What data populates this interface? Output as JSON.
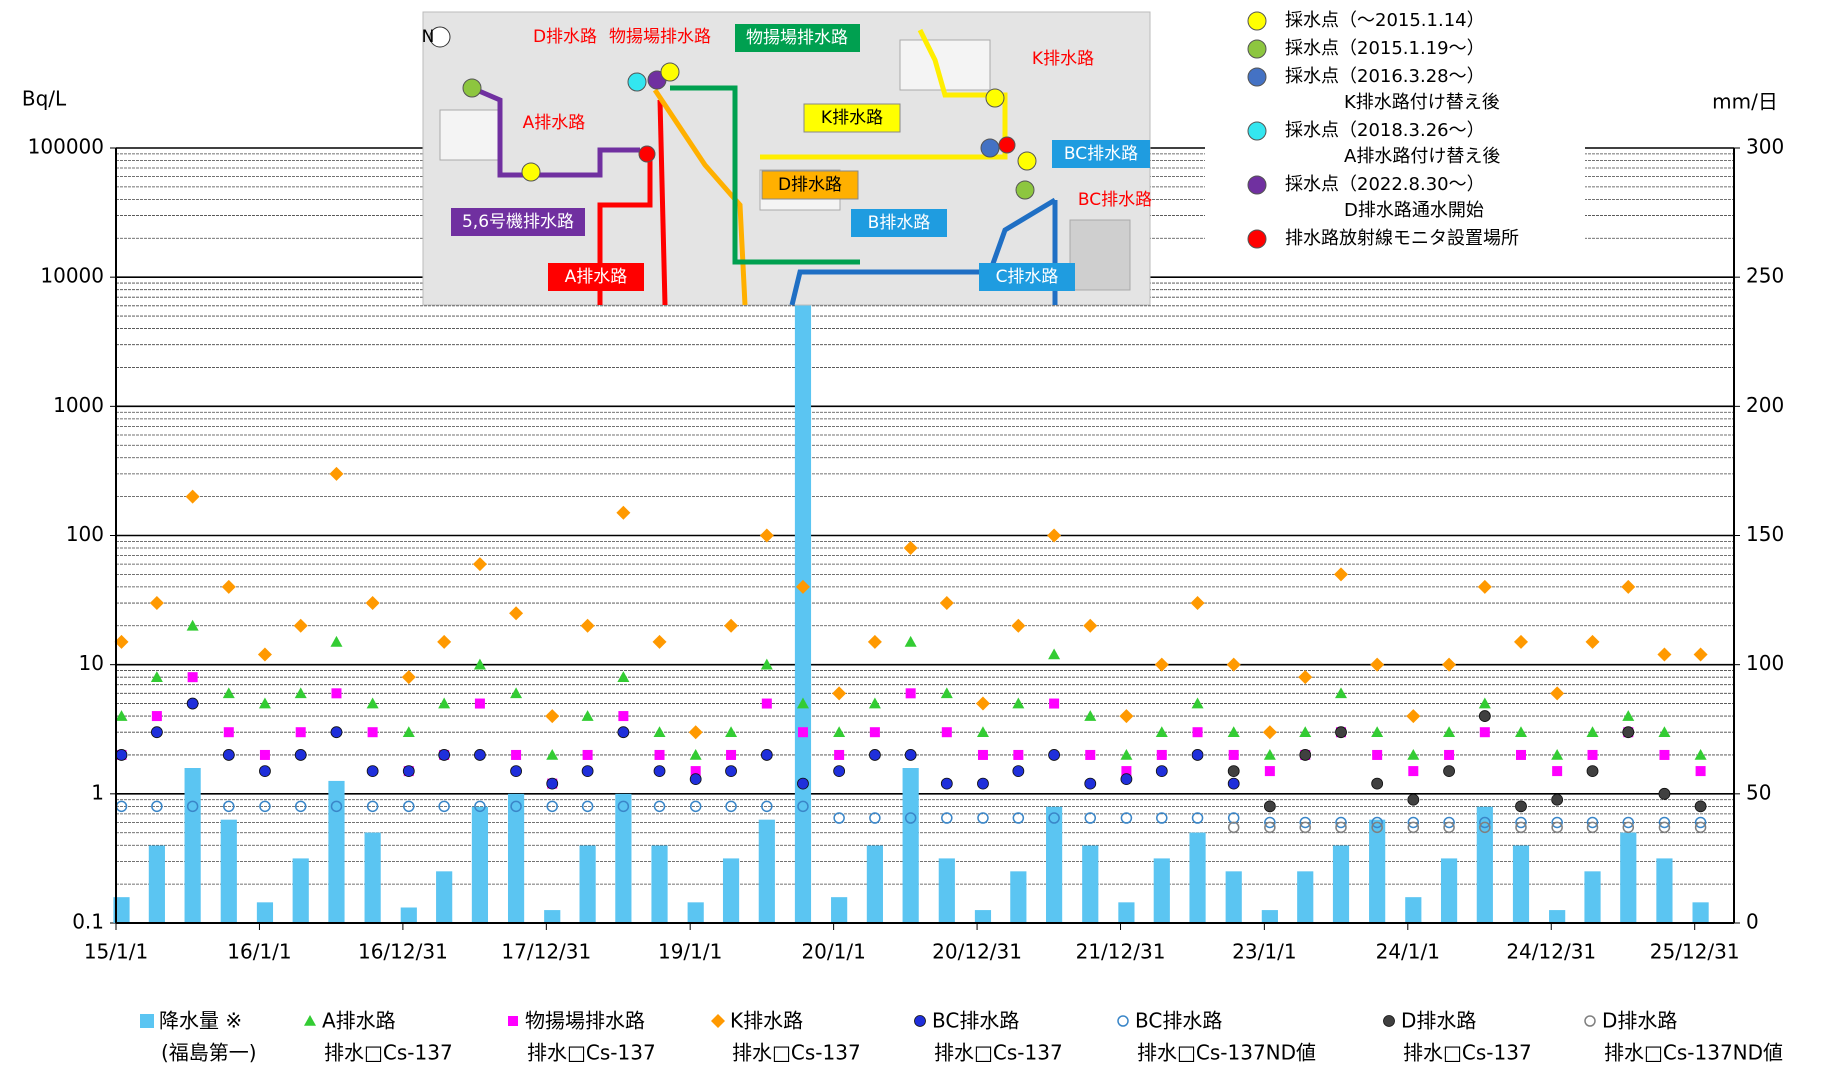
{
  "chart_data": {
    "type": "scatter",
    "y_label": "Bq/L",
    "y2_label": "mm/日",
    "log_y": true,
    "grid": true,
    "ylim": [
      0.1,
      100000
    ],
    "yticks": [
      0.1,
      1,
      10,
      100,
      1000,
      10000,
      100000
    ],
    "y2lim": [
      0,
      300
    ],
    "y2ticks": [
      0,
      50,
      100,
      150,
      200,
      250,
      300
    ],
    "xlim": [
      "15/1/1",
      "26/4/10"
    ],
    "xticks": [
      "15/1/1",
      "16/1/1",
      "16/12/31",
      "17/12/31",
      "19/1/1",
      "20/1/1",
      "20/12/31",
      "21/12/31",
      "23/1/1",
      "24/1/1",
      "24/12/31",
      "25/12/31"
    ],
    "x": [
      "15/1/15",
      "15/4/15",
      "15/7/15",
      "15/10/15",
      "16/1/15",
      "16/4/15",
      "16/7/15",
      "16/10/15",
      "17/1/15",
      "17/4/15",
      "17/7/15",
      "17/10/15",
      "18/1/15",
      "18/4/15",
      "18/7/15",
      "18/10/15",
      "19/1/15",
      "19/4/15",
      "19/7/15",
      "19/10/15",
      "20/1/15",
      "20/4/15",
      "20/7/15",
      "20/10/15",
      "21/1/15",
      "21/4/15",
      "21/7/15",
      "21/10/15",
      "22/1/15",
      "22/4/15",
      "22/7/15",
      "22/10/15",
      "23/1/15",
      "23/4/15",
      "23/7/15",
      "23/10/15",
      "24/1/15",
      "24/4/15",
      "24/7/15",
      "24/10/15",
      "25/1/15",
      "25/4/15",
      "25/7/15",
      "25/10/15",
      "26/1/15"
    ],
    "series": [
      {
        "name": "降水量 ※",
        "name2": "(福島第一)",
        "color": "#5bc5f2",
        "marker": "bar",
        "axis": "y2",
        "values": [
          10,
          30,
          60,
          40,
          8,
          25,
          55,
          35,
          6,
          20,
          45,
          50,
          5,
          30,
          50,
          30,
          8,
          25,
          40,
          290,
          10,
          30,
          60,
          25,
          5,
          20,
          45,
          30,
          8,
          25,
          35,
          20,
          5,
          20,
          30,
          40,
          10,
          25,
          45,
          30,
          5,
          20,
          35,
          25,
          8
        ]
      },
      {
        "name": "A排水路",
        "name2": "排水□Cs-137",
        "color": "#33cc33",
        "marker": "triangle",
        "values": [
          4,
          8,
          20,
          6,
          5,
          6,
          15,
          5,
          3,
          5,
          10,
          6,
          2,
          4,
          8,
          3,
          2,
          3,
          10,
          5,
          3,
          5,
          15,
          6,
          3,
          5,
          12,
          4,
          2,
          3,
          5,
          3,
          2,
          3,
          6,
          3,
          2,
          3,
          5,
          3,
          2,
          3,
          4,
          3,
          2
        ]
      },
      {
        "name": "物揚場排水路",
        "name2": "排水□Cs-137",
        "color": "#ff00ff",
        "marker": "square",
        "values": [
          2,
          4,
          8,
          3,
          2,
          3,
          6,
          3,
          1.5,
          2,
          5,
          2,
          1.2,
          2,
          4,
          2,
          1.5,
          2,
          5,
          3,
          2,
          3,
          6,
          3,
          2,
          2,
          5,
          2,
          1.5,
          2,
          3,
          2,
          1.5,
          2,
          3,
          2,
          1.5,
          2,
          3,
          2,
          1.5,
          2,
          3,
          2,
          1.5
        ]
      },
      {
        "name": "K排水路",
        "name2": "排水□Cs-137",
        "color": "#ff9900",
        "marker": "diamond",
        "values": [
          15,
          30,
          200,
          40,
          12,
          20,
          300,
          30,
          8,
          15,
          60,
          25,
          4,
          20,
          150,
          15,
          3,
          20,
          100,
          40,
          6,
          15,
          80,
          30,
          5,
          20,
          100,
          20,
          4,
          10,
          30,
          10,
          3,
          8,
          50,
          10,
          4,
          10,
          40,
          15,
          6,
          15,
          40,
          12,
          12
        ]
      },
      {
        "name": "BC排水路",
        "name2": "排水□Cs-137",
        "color": "#1f2fdb",
        "marker": "circle",
        "values": [
          2,
          3,
          5,
          2,
          1.5,
          2,
          3,
          1.5,
          1.5,
          2,
          2,
          1.5,
          1.2,
          1.5,
          3,
          1.5,
          1.3,
          1.5,
          2,
          1.2,
          1.5,
          2,
          2,
          1.2,
          1.2,
          1.5,
          2,
          1.2,
          1.3,
          1.5,
          2,
          1.2,
          null,
          null,
          null,
          null,
          null,
          null,
          null,
          null,
          null,
          null,
          null,
          null,
          null
        ]
      },
      {
        "name": "BC排水路",
        "name2": "排水□Cs-137ND値",
        "color": "#3a86c8",
        "marker": "open-circle",
        "values": [
          0.8,
          0.8,
          0.8,
          0.8,
          0.8,
          0.8,
          0.8,
          0.8,
          0.8,
          0.8,
          0.8,
          0.8,
          0.8,
          0.8,
          0.8,
          0.8,
          0.8,
          0.8,
          0.8,
          0.8,
          0.65,
          0.65,
          0.65,
          0.65,
          0.65,
          0.65,
          0.65,
          0.65,
          0.65,
          0.65,
          0.65,
          0.65,
          0.6,
          0.6,
          0.6,
          0.6,
          0.6,
          0.6,
          0.6,
          0.6,
          0.6,
          0.6,
          0.6,
          0.6,
          0.6
        ]
      },
      {
        "name": "D排水路",
        "name2": "排水□Cs-137",
        "color": "#404040",
        "marker": "circle",
        "values": [
          null,
          null,
          null,
          null,
          null,
          null,
          null,
          null,
          null,
          null,
          null,
          null,
          null,
          null,
          null,
          null,
          null,
          null,
          null,
          null,
          null,
          null,
          null,
          null,
          null,
          null,
          null,
          null,
          null,
          null,
          null,
          1.5,
          0.8,
          2,
          3,
          1.2,
          0.9,
          1.5,
          4,
          0.8,
          0.9,
          1.5,
          3,
          1,
          0.8
        ]
      },
      {
        "name": "D排水路",
        "name2": "排水□Cs-137ND値",
        "color": "#7f7f7f",
        "marker": "open-circle",
        "values": [
          null,
          null,
          null,
          null,
          null,
          null,
          null,
          null,
          null,
          null,
          null,
          null,
          null,
          null,
          null,
          null,
          null,
          null,
          null,
          null,
          null,
          null,
          null,
          null,
          null,
          null,
          null,
          null,
          null,
          null,
          null,
          0.55,
          0.55,
          0.55,
          0.55,
          0.55,
          0.55,
          0.55,
          0.55,
          0.55,
          0.55,
          0.55,
          0.55,
          0.55,
          0.55
        ]
      }
    ]
  },
  "map": {
    "labels": [
      "N",
      "D排水路",
      "物揚場排水路",
      "物揚場排水路",
      "K排水路",
      "A排水路",
      "K排水路",
      "BC排水路",
      "D排水路",
      "BC排水路",
      "5,6号機排水路",
      "B排水路",
      "A排水路",
      "C排水路"
    ]
  },
  "map_legend": [
    {
      "text": "採水点（～2015.1.14）",
      "color": "#ffff00"
    },
    {
      "text": "採水点（2015.1.19～）",
      "color": "#8dc63f"
    },
    {
      "text": "採水点（2016.3.28～）",
      "color": "#4472c4",
      "note": "K排水路付け替え後"
    },
    {
      "text": "採水点（2018.3.26～）",
      "color": "#33e6f0",
      "note": "A排水路付け替え後"
    },
    {
      "text": "採水点（2022.8.30～）",
      "color": "#7030a0",
      "note": "D排水路通水開始"
    },
    {
      "text": "排水路放射線モニタ設置場所",
      "color": "#ff0000"
    }
  ]
}
